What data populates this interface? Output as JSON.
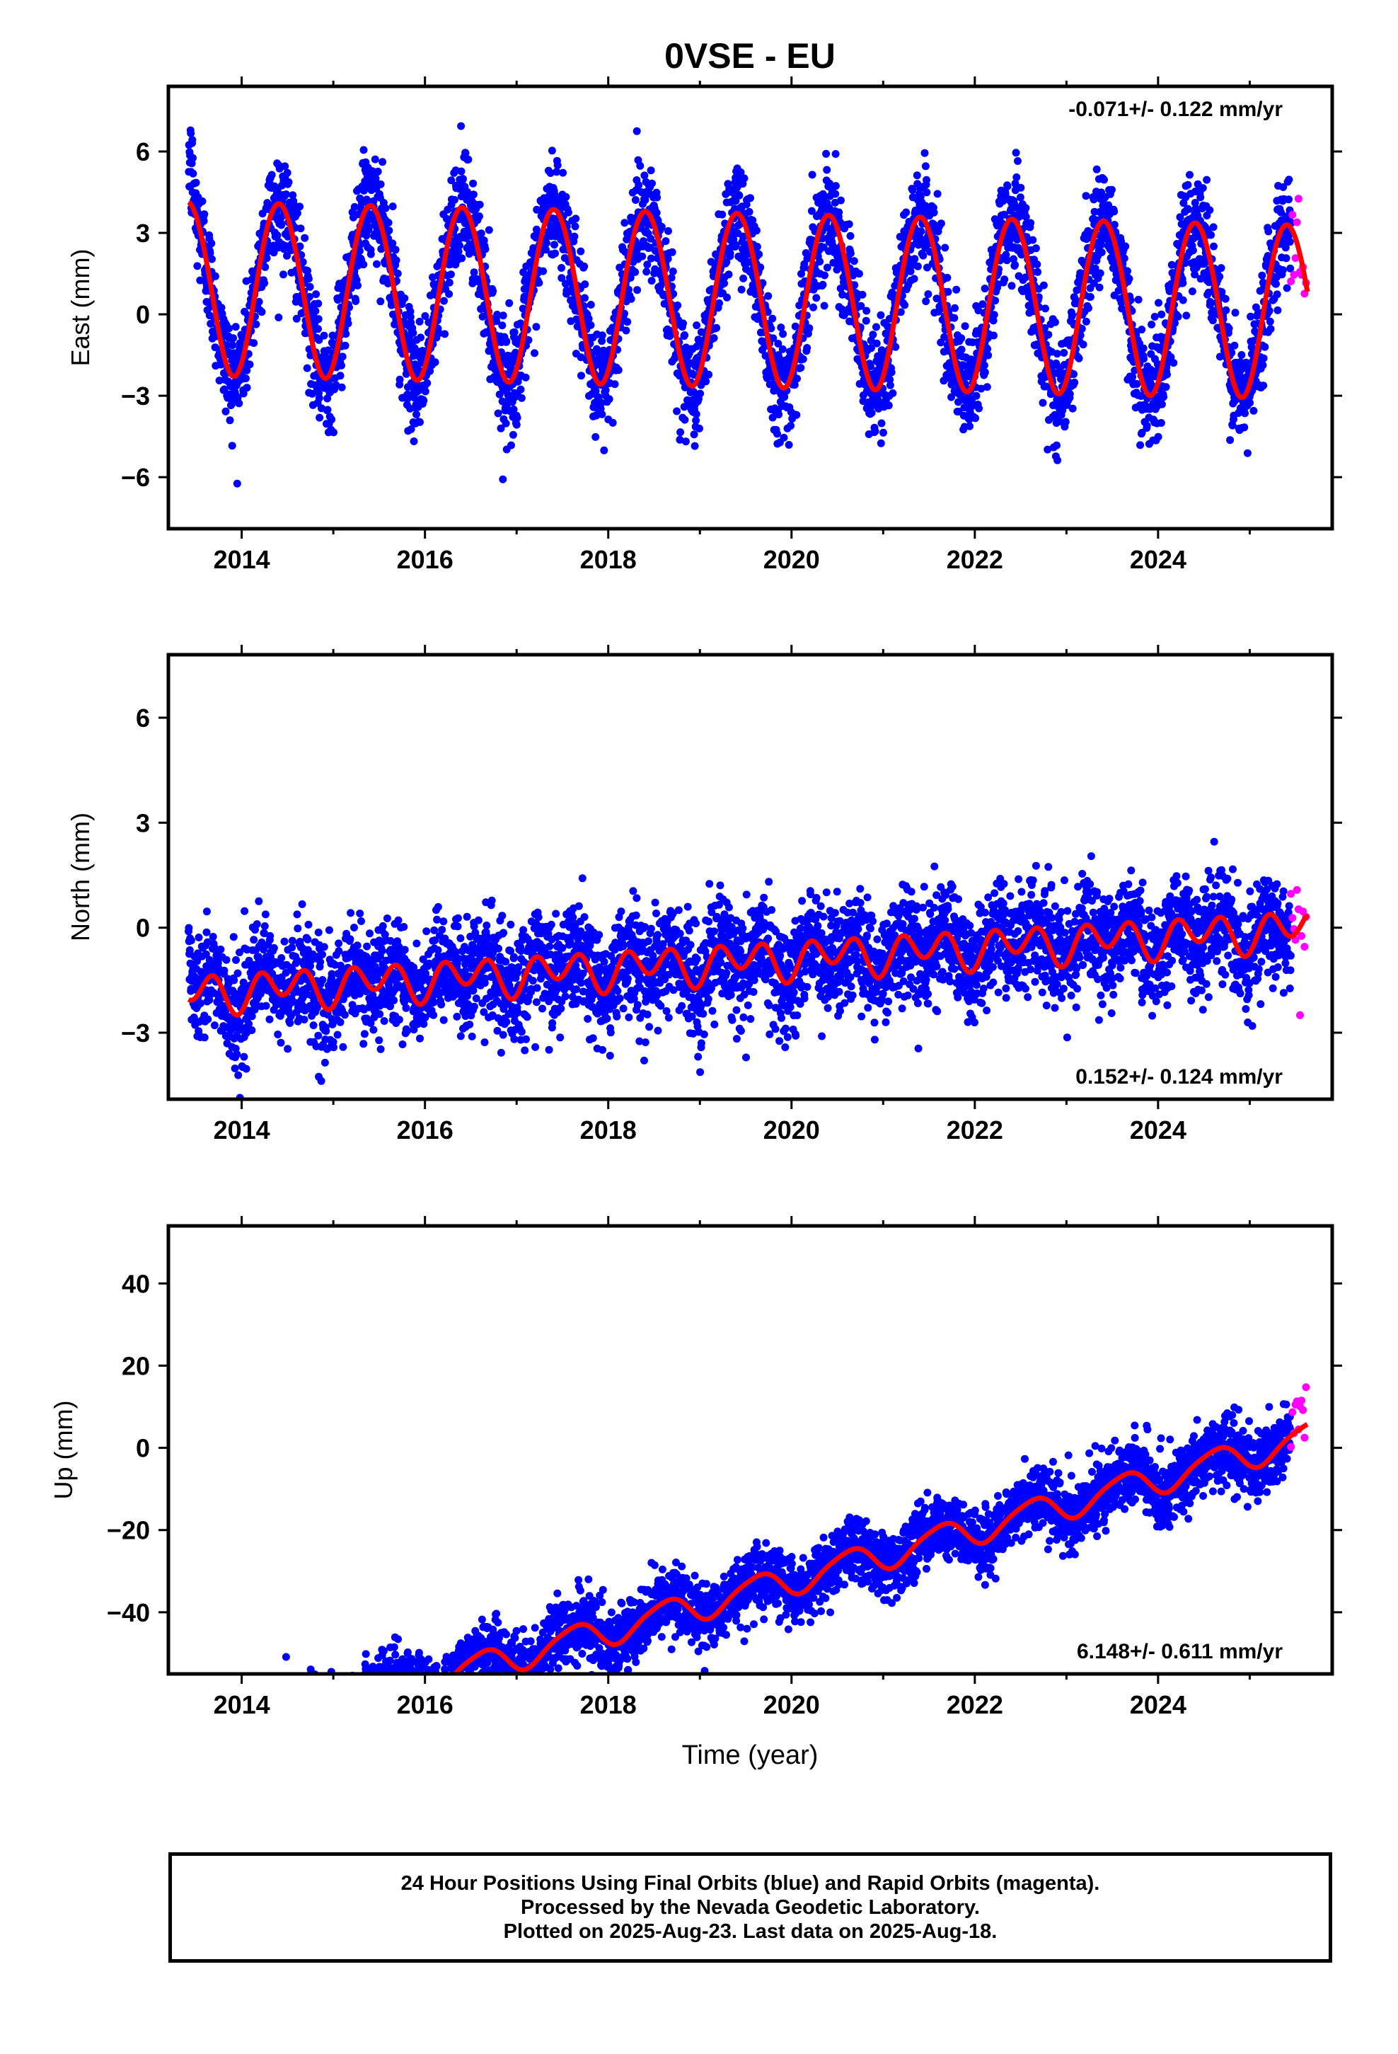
{
  "title": "0VSE - EU",
  "xlabel": "Time (year)",
  "x_ticks": [
    "2014",
    "2016",
    "2018",
    "2020",
    "2022",
    "2024"
  ],
  "footer": {
    "line1": "24 Hour Positions Using Final Orbits (blue) and Rapid Orbits (magenta).",
    "line2": "Processed by the Nevada Geodetic Laboratory.",
    "line3": "Plotted on 2025-Aug-23. Last data on 2025-Aug-18."
  },
  "colors": {
    "final_orbits": "#0000ff",
    "rapid_orbits": "#ff00ff",
    "model_fit": "#ff0000",
    "axes": "#000000"
  },
  "chart_data": [
    {
      "type": "scatter",
      "panel": "east",
      "ylabel": "East (mm)",
      "rate_label": "-0.071+/- 0.122 mm/yr",
      "rate_position": "top-right",
      "xlim": [
        2013.2,
        2025.9
      ],
      "ylim": [
        -7.9,
        8.4
      ],
      "y_ticks": [
        -6,
        -3,
        0,
        3,
        6
      ],
      "x_range_data": [
        2013.42,
        2025.45
      ],
      "rapid_range": [
        2025.45,
        2025.63
      ],
      "model": {
        "offset": 0.6,
        "rate": -0.071,
        "annual_amp": 3.2,
        "annual_phase_peak": 0.41,
        "semiannual_amp": 0.1,
        "semiannual_phase_peak": 0.2
      },
      "scatter_sd": 1.0,
      "series": [
        {
          "name": "Final Orbits (blue)",
          "color": "#0000ff"
        },
        {
          "name": "Rapid Orbits (magenta)",
          "color": "#ff00ff"
        }
      ]
    },
    {
      "type": "scatter",
      "panel": "north",
      "ylabel": "North (mm)",
      "rate_label": "0.152+/- 0.124 mm/yr",
      "rate_position": "bottom-right",
      "xlim": [
        2013.2,
        2025.9
      ],
      "ylim": [
        -4.9,
        7.8
      ],
      "y_ticks": [
        -3,
        0,
        3,
        6
      ],
      "x_range_data": [
        2013.42,
        2025.45
      ],
      "rapid_range": [
        2025.45,
        2025.63
      ],
      "model": {
        "offset": -0.95,
        "rate": 0.152,
        "annual_amp": 0.25,
        "annual_phase_peak": 0.45,
        "semiannual_amp": 0.45,
        "semiannual_phase_peak": 0.2
      },
      "scatter_sd": 0.75,
      "series": [
        {
          "name": "Final Orbits (blue)",
          "color": "#0000ff"
        },
        {
          "name": "Rapid Orbits (magenta)",
          "color": "#ff00ff"
        }
      ]
    },
    {
      "type": "scatter",
      "panel": "up",
      "ylabel": "Up (mm)",
      "rate_label": "6.148+/- 0.611 mm/yr",
      "rate_position": "bottom-right",
      "xlim": [
        2013.2,
        2025.9
      ],
      "ylim": [
        -55,
        54
      ],
      "y_ticks": [
        -40,
        -20,
        0,
        20,
        40
      ],
      "x_range_data": [
        2013.42,
        2025.45
      ],
      "rapid_range": [
        2025.45,
        2025.63
      ],
      "model": {
        "offset": -35,
        "rate": 6.148,
        "annual_amp": 3.5,
        "annual_phase_peak": 0.62,
        "semiannual_amp": 0.6,
        "semiannual_phase_peak": 0.3
      },
      "scatter_sd": 4.0,
      "series": [
        {
          "name": "Final Orbits (blue)",
          "color": "#0000ff"
        },
        {
          "name": "Rapid Orbits (magenta)",
          "color": "#ff00ff"
        }
      ]
    }
  ]
}
